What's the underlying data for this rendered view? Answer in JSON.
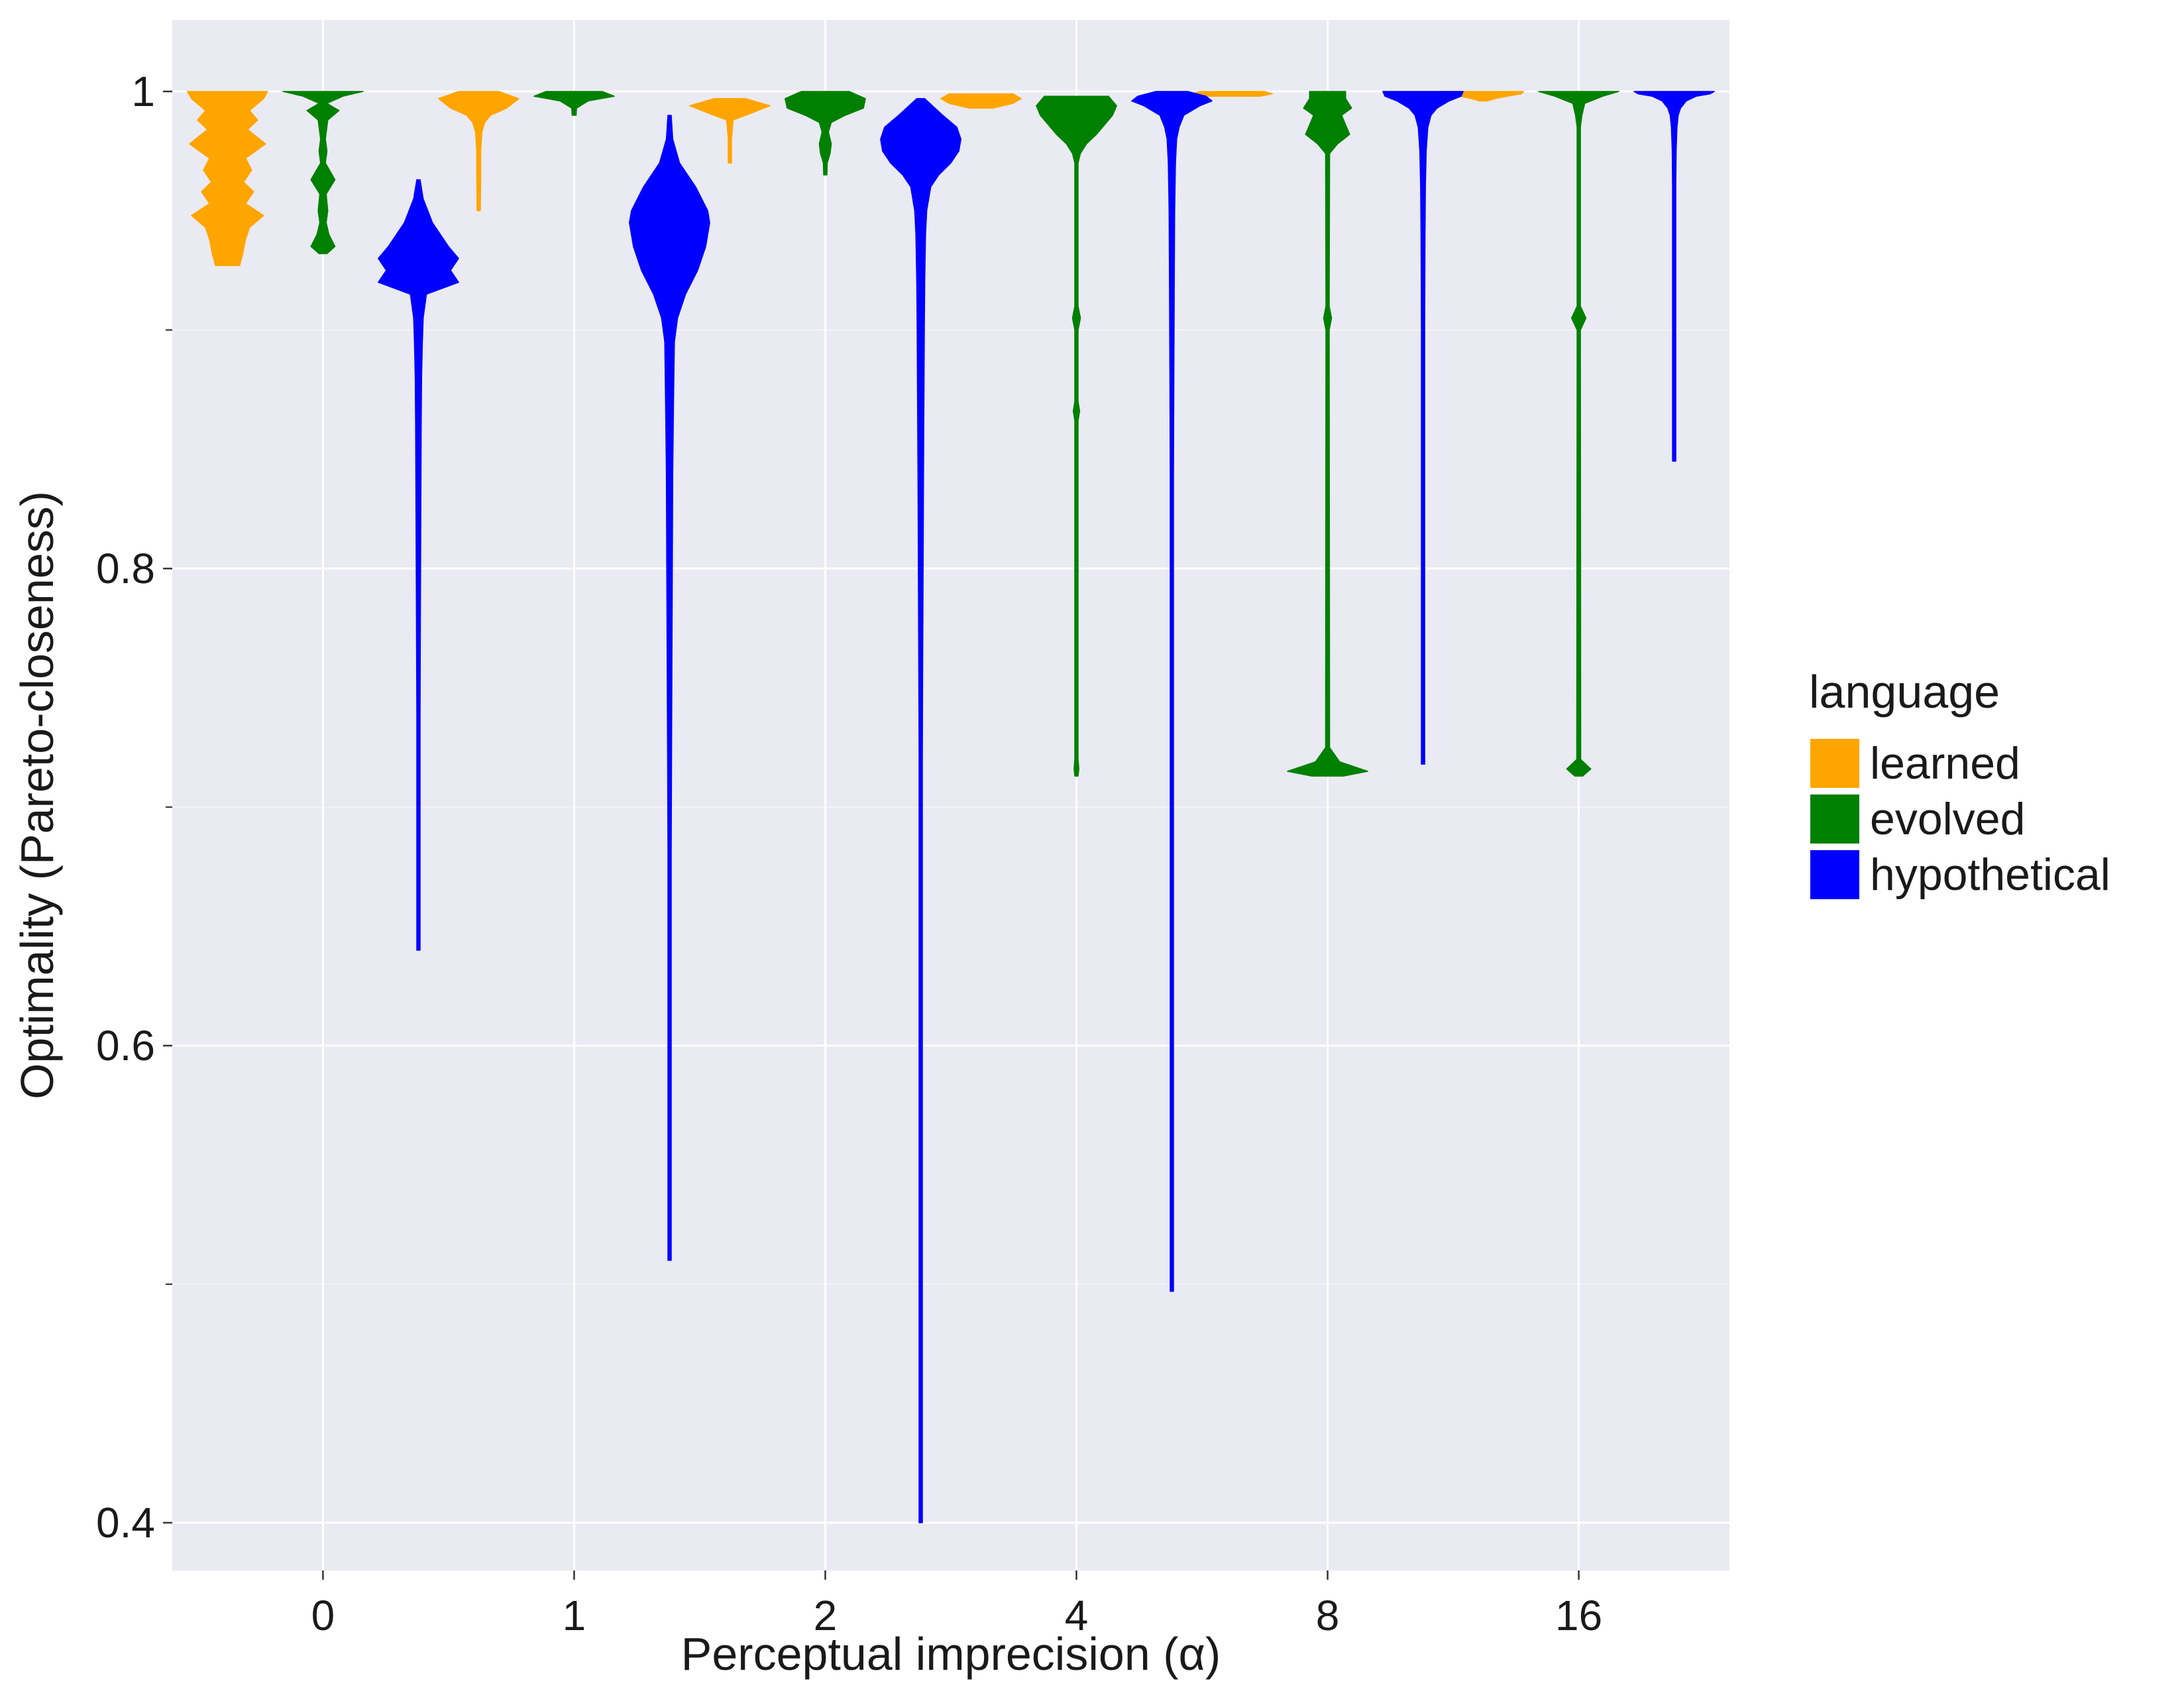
{
  "chart_data": {
    "type": "violin",
    "xlabel": "Perceptual imprecision (α)",
    "ylabel": "Optimality (Pareto-closeness)",
    "categories": [
      "0",
      "1",
      "2",
      "4",
      "8",
      "16"
    ],
    "y_ticks": [
      "0.4",
      "0.6",
      "0.8",
      "1"
    ],
    "ylim": [
      0.38,
      1.03
    ],
    "grid": true,
    "legend": {
      "title": "language",
      "placement": "right",
      "entries": [
        "learned",
        "evolved",
        "hypothetical"
      ]
    },
    "series": [
      {
        "name": "learned",
        "color": "#FFA500",
        "violins": [
          {
            "category": "0",
            "min": 0.927,
            "max": 1.0,
            "shape": [
              [
                1.0,
                1.0
              ],
              [
                0.997,
                0.9
              ],
              [
                0.992,
                0.55
              ],
              [
                0.988,
                0.75
              ],
              [
                0.984,
                0.5
              ],
              [
                0.978,
                0.95
              ],
              [
                0.972,
                0.45
              ],
              [
                0.967,
                0.6
              ],
              [
                0.962,
                0.4
              ],
              [
                0.958,
                0.65
              ],
              [
                0.953,
                0.45
              ],
              [
                0.948,
                0.9
              ],
              [
                0.943,
                0.55
              ],
              [
                0.938,
                0.45
              ],
              [
                0.932,
                0.38
              ],
              [
                0.927,
                0.3
              ]
            ]
          },
          {
            "category": "1",
            "min": 0.95,
            "max": 1.0,
            "shape": [
              [
                1.0,
                0.5
              ],
              [
                0.997,
                1.0
              ],
              [
                0.993,
                0.7
              ],
              [
                0.99,
                0.3
              ],
              [
                0.987,
                0.15
              ],
              [
                0.983,
                0.08
              ],
              [
                0.975,
                0.05
              ],
              [
                0.965,
                0.05
              ],
              [
                0.95,
                0.04
              ]
            ]
          },
          {
            "category": "2",
            "min": 0.97,
            "max": 0.997,
            "shape": [
              [
                0.997,
                0.4
              ],
              [
                0.994,
                1.0
              ],
              [
                0.991,
                0.55
              ],
              [
                0.988,
                0.08
              ],
              [
                0.98,
                0.04
              ],
              [
                0.97,
                0.03
              ]
            ]
          },
          {
            "category": "4",
            "min": 0.993,
            "max": 0.999,
            "shape": [
              [
                0.999,
                0.8
              ],
              [
                0.997,
                1.0
              ],
              [
                0.995,
                0.8
              ],
              [
                0.993,
                0.3
              ]
            ]
          },
          {
            "category": "8",
            "min": 0.998,
            "max": 1.0,
            "shape": [
              [
                1.0,
                0.8
              ],
              [
                0.999,
                1.0
              ],
              [
                0.998,
                0.7
              ]
            ]
          },
          {
            "category": "16",
            "min": 0.996,
            "max": 1.0,
            "shape": [
              [
                1.0,
                1.0
              ],
              [
                0.999,
                0.95
              ],
              [
                0.998,
                0.6
              ],
              [
                0.997,
                0.3
              ],
              [
                0.996,
                0.1
              ]
            ]
          }
        ]
      },
      {
        "name": "evolved",
        "color": "#008000",
        "violins": [
          {
            "category": "0",
            "min": 0.932,
            "max": 1.0,
            "shape": [
              [
                1.0,
                1.0
              ],
              [
                0.998,
                0.5
              ],
              [
                0.995,
                0.1
              ],
              [
                0.992,
                0.4
              ],
              [
                0.988,
                0.12
              ],
              [
                0.98,
                0.06
              ],
              [
                0.975,
                0.1
              ],
              [
                0.97,
                0.06
              ],
              [
                0.963,
                0.3
              ],
              [
                0.957,
                0.08
              ],
              [
                0.95,
                0.12
              ],
              [
                0.945,
                0.08
              ],
              [
                0.94,
                0.15
              ],
              [
                0.935,
                0.3
              ],
              [
                0.932,
                0.1
              ]
            ]
          },
          {
            "category": "1",
            "min": 0.99,
            "max": 1.0,
            "shape": [
              [
                1.0,
                0.7
              ],
              [
                0.998,
                1.0
              ],
              [
                0.996,
                0.35
              ],
              [
                0.993,
                0.06
              ],
              [
                0.99,
                0.05
              ]
            ]
          },
          {
            "category": "2",
            "min": 0.965,
            "max": 1.0,
            "shape": [
              [
                1.0,
                0.6
              ],
              [
                0.997,
                1.0
              ],
              [
                0.993,
                0.95
              ],
              [
                0.99,
                0.5
              ],
              [
                0.987,
                0.15
              ],
              [
                0.983,
                0.08
              ],
              [
                0.978,
                0.15
              ],
              [
                0.974,
                0.12
              ],
              [
                0.97,
                0.05
              ],
              [
                0.965,
                0.04
              ]
            ]
          },
          {
            "category": "4",
            "min": 0.713,
            "max": 0.998,
            "shape": [
              [
                0.998,
                0.8
              ],
              [
                0.994,
                1.0
              ],
              [
                0.99,
                0.9
              ],
              [
                0.986,
                0.7
              ],
              [
                0.982,
                0.5
              ],
              [
                0.978,
                0.25
              ],
              [
                0.974,
                0.1
              ],
              [
                0.97,
                0.04
              ],
              [
                0.91,
                0.04
              ],
              [
                0.905,
                0.1
              ],
              [
                0.9,
                0.04
              ],
              [
                0.87,
                0.04
              ],
              [
                0.866,
                0.08
              ],
              [
                0.862,
                0.04
              ],
              [
                0.72,
                0.04
              ],
              [
                0.716,
                0.06
              ],
              [
                0.713,
                0.04
              ]
            ]
          },
          {
            "category": "8",
            "min": 0.713,
            "max": 1.0,
            "shape": [
              [
                1.0,
                0.45
              ],
              [
                0.997,
                0.45
              ],
              [
                0.993,
                0.6
              ],
              [
                0.99,
                0.35
              ],
              [
                0.986,
                0.45
              ],
              [
                0.982,
                0.55
              ],
              [
                0.978,
                0.25
              ],
              [
                0.974,
                0.05
              ],
              [
                0.91,
                0.04
              ],
              [
                0.905,
                0.1
              ],
              [
                0.9,
                0.04
              ],
              [
                0.725,
                0.05
              ],
              [
                0.719,
                0.3
              ],
              [
                0.715,
                1.0
              ],
              [
                0.713,
                0.4
              ]
            ]
          },
          {
            "category": "16",
            "min": 0.713,
            "max": 1.0,
            "shape": [
              [
                1.0,
                1.0
              ],
              [
                0.998,
                0.6
              ],
              [
                0.995,
                0.15
              ],
              [
                0.99,
                0.08
              ],
              [
                0.985,
                0.04
              ],
              [
                0.91,
                0.04
              ],
              [
                0.905,
                0.18
              ],
              [
                0.9,
                0.04
              ],
              [
                0.72,
                0.05
              ],
              [
                0.716,
                0.3
              ],
              [
                0.713,
                0.1
              ]
            ]
          }
        ]
      },
      {
        "name": "hypothetical",
        "color": "#0000FF",
        "violins": [
          {
            "category": "0",
            "min": 0.64,
            "max": 0.963,
            "shape": [
              [
                0.963,
                0.04
              ],
              [
                0.955,
                0.12
              ],
              [
                0.945,
                0.35
              ],
              [
                0.935,
                0.75
              ],
              [
                0.93,
                1.0
              ],
              [
                0.925,
                0.8
              ],
              [
                0.92,
                1.0
              ],
              [
                0.915,
                0.2
              ],
              [
                0.905,
                0.12
              ],
              [
                0.895,
                0.1
              ],
              [
                0.88,
                0.08
              ],
              [
                0.86,
                0.07
              ],
              [
                0.82,
                0.06
              ],
              [
                0.78,
                0.05
              ],
              [
                0.74,
                0.04
              ],
              [
                0.7,
                0.03
              ],
              [
                0.64,
                0.02
              ]
            ]
          },
          {
            "category": "1",
            "min": 0.51,
            "max": 0.99,
            "shape": [
              [
                0.99,
                0.03
              ],
              [
                0.98,
                0.08
              ],
              [
                0.97,
                0.25
              ],
              [
                0.96,
                0.65
              ],
              [
                0.95,
                0.95
              ],
              [
                0.945,
                1.0
              ],
              [
                0.935,
                0.9
              ],
              [
                0.925,
                0.7
              ],
              [
                0.915,
                0.4
              ],
              [
                0.905,
                0.2
              ],
              [
                0.895,
                0.12
              ],
              [
                0.87,
                0.1
              ],
              [
                0.84,
                0.08
              ],
              [
                0.8,
                0.07
              ],
              [
                0.76,
                0.06
              ],
              [
                0.72,
                0.05
              ],
              [
                0.68,
                0.04
              ],
              [
                0.6,
                0.03
              ],
              [
                0.51,
                0.02
              ]
            ]
          },
          {
            "category": "2",
            "min": 0.4,
            "max": 0.997,
            "shape": [
              [
                0.997,
                0.1
              ],
              [
                0.99,
                0.55
              ],
              [
                0.985,
                0.9
              ],
              [
                0.98,
                1.0
              ],
              [
                0.975,
                0.95
              ],
              [
                0.97,
                0.75
              ],
              [
                0.965,
                0.45
              ],
              [
                0.96,
                0.25
              ],
              [
                0.95,
                0.15
              ],
              [
                0.94,
                0.12
              ],
              [
                0.92,
                0.1
              ],
              [
                0.9,
                0.09
              ],
              [
                0.87,
                0.08
              ],
              [
                0.84,
                0.07
              ],
              [
                0.8,
                0.06
              ],
              [
                0.76,
                0.05
              ],
              [
                0.72,
                0.04
              ],
              [
                0.65,
                0.03
              ],
              [
                0.55,
                0.025
              ],
              [
                0.4,
                0.02
              ]
            ]
          },
          {
            "category": "4",
            "min": 0.497,
            "max": 1.0,
            "shape": [
              [
                1.0,
                0.4
              ],
              [
                0.998,
                0.85
              ],
              [
                0.996,
                1.0
              ],
              [
                0.994,
                0.7
              ],
              [
                0.99,
                0.3
              ],
              [
                0.985,
                0.18
              ],
              [
                0.98,
                0.12
              ],
              [
                0.97,
                0.09
              ],
              [
                0.95,
                0.07
              ],
              [
                0.92,
                0.06
              ],
              [
                0.88,
                0.05
              ],
              [
                0.84,
                0.04
              ],
              [
                0.78,
                0.035
              ],
              [
                0.7,
                0.03
              ],
              [
                0.6,
                0.025
              ],
              [
                0.497,
                0.02
              ]
            ]
          },
          {
            "category": "8",
            "min": 0.718,
            "max": 1.0,
            "shape": [
              [
                1.0,
                1.0
              ],
              [
                0.998,
                0.95
              ],
              [
                0.996,
                0.65
              ],
              [
                0.993,
                0.35
              ],
              [
                0.99,
                0.2
              ],
              [
                0.985,
                0.12
              ],
              [
                0.975,
                0.08
              ],
              [
                0.96,
                0.06
              ],
              [
                0.94,
                0.05
              ],
              [
                0.9,
                0.04
              ],
              [
                0.85,
                0.03
              ],
              [
                0.8,
                0.025
              ],
              [
                0.718,
                0.02
              ]
            ]
          },
          {
            "category": "16",
            "min": 0.845,
            "max": 1.0,
            "shape": [
              [
                1.0,
                1.0
              ],
              [
                0.999,
                0.9
              ],
              [
                0.998,
                0.55
              ],
              [
                0.996,
                0.3
              ],
              [
                0.993,
                0.16
              ],
              [
                0.99,
                0.1
              ],
              [
                0.985,
                0.07
              ],
              [
                0.975,
                0.05
              ],
              [
                0.96,
                0.04
              ],
              [
                0.94,
                0.03
              ],
              [
                0.9,
                0.025
              ],
              [
                0.845,
                0.02
              ]
            ]
          }
        ]
      }
    ]
  }
}
